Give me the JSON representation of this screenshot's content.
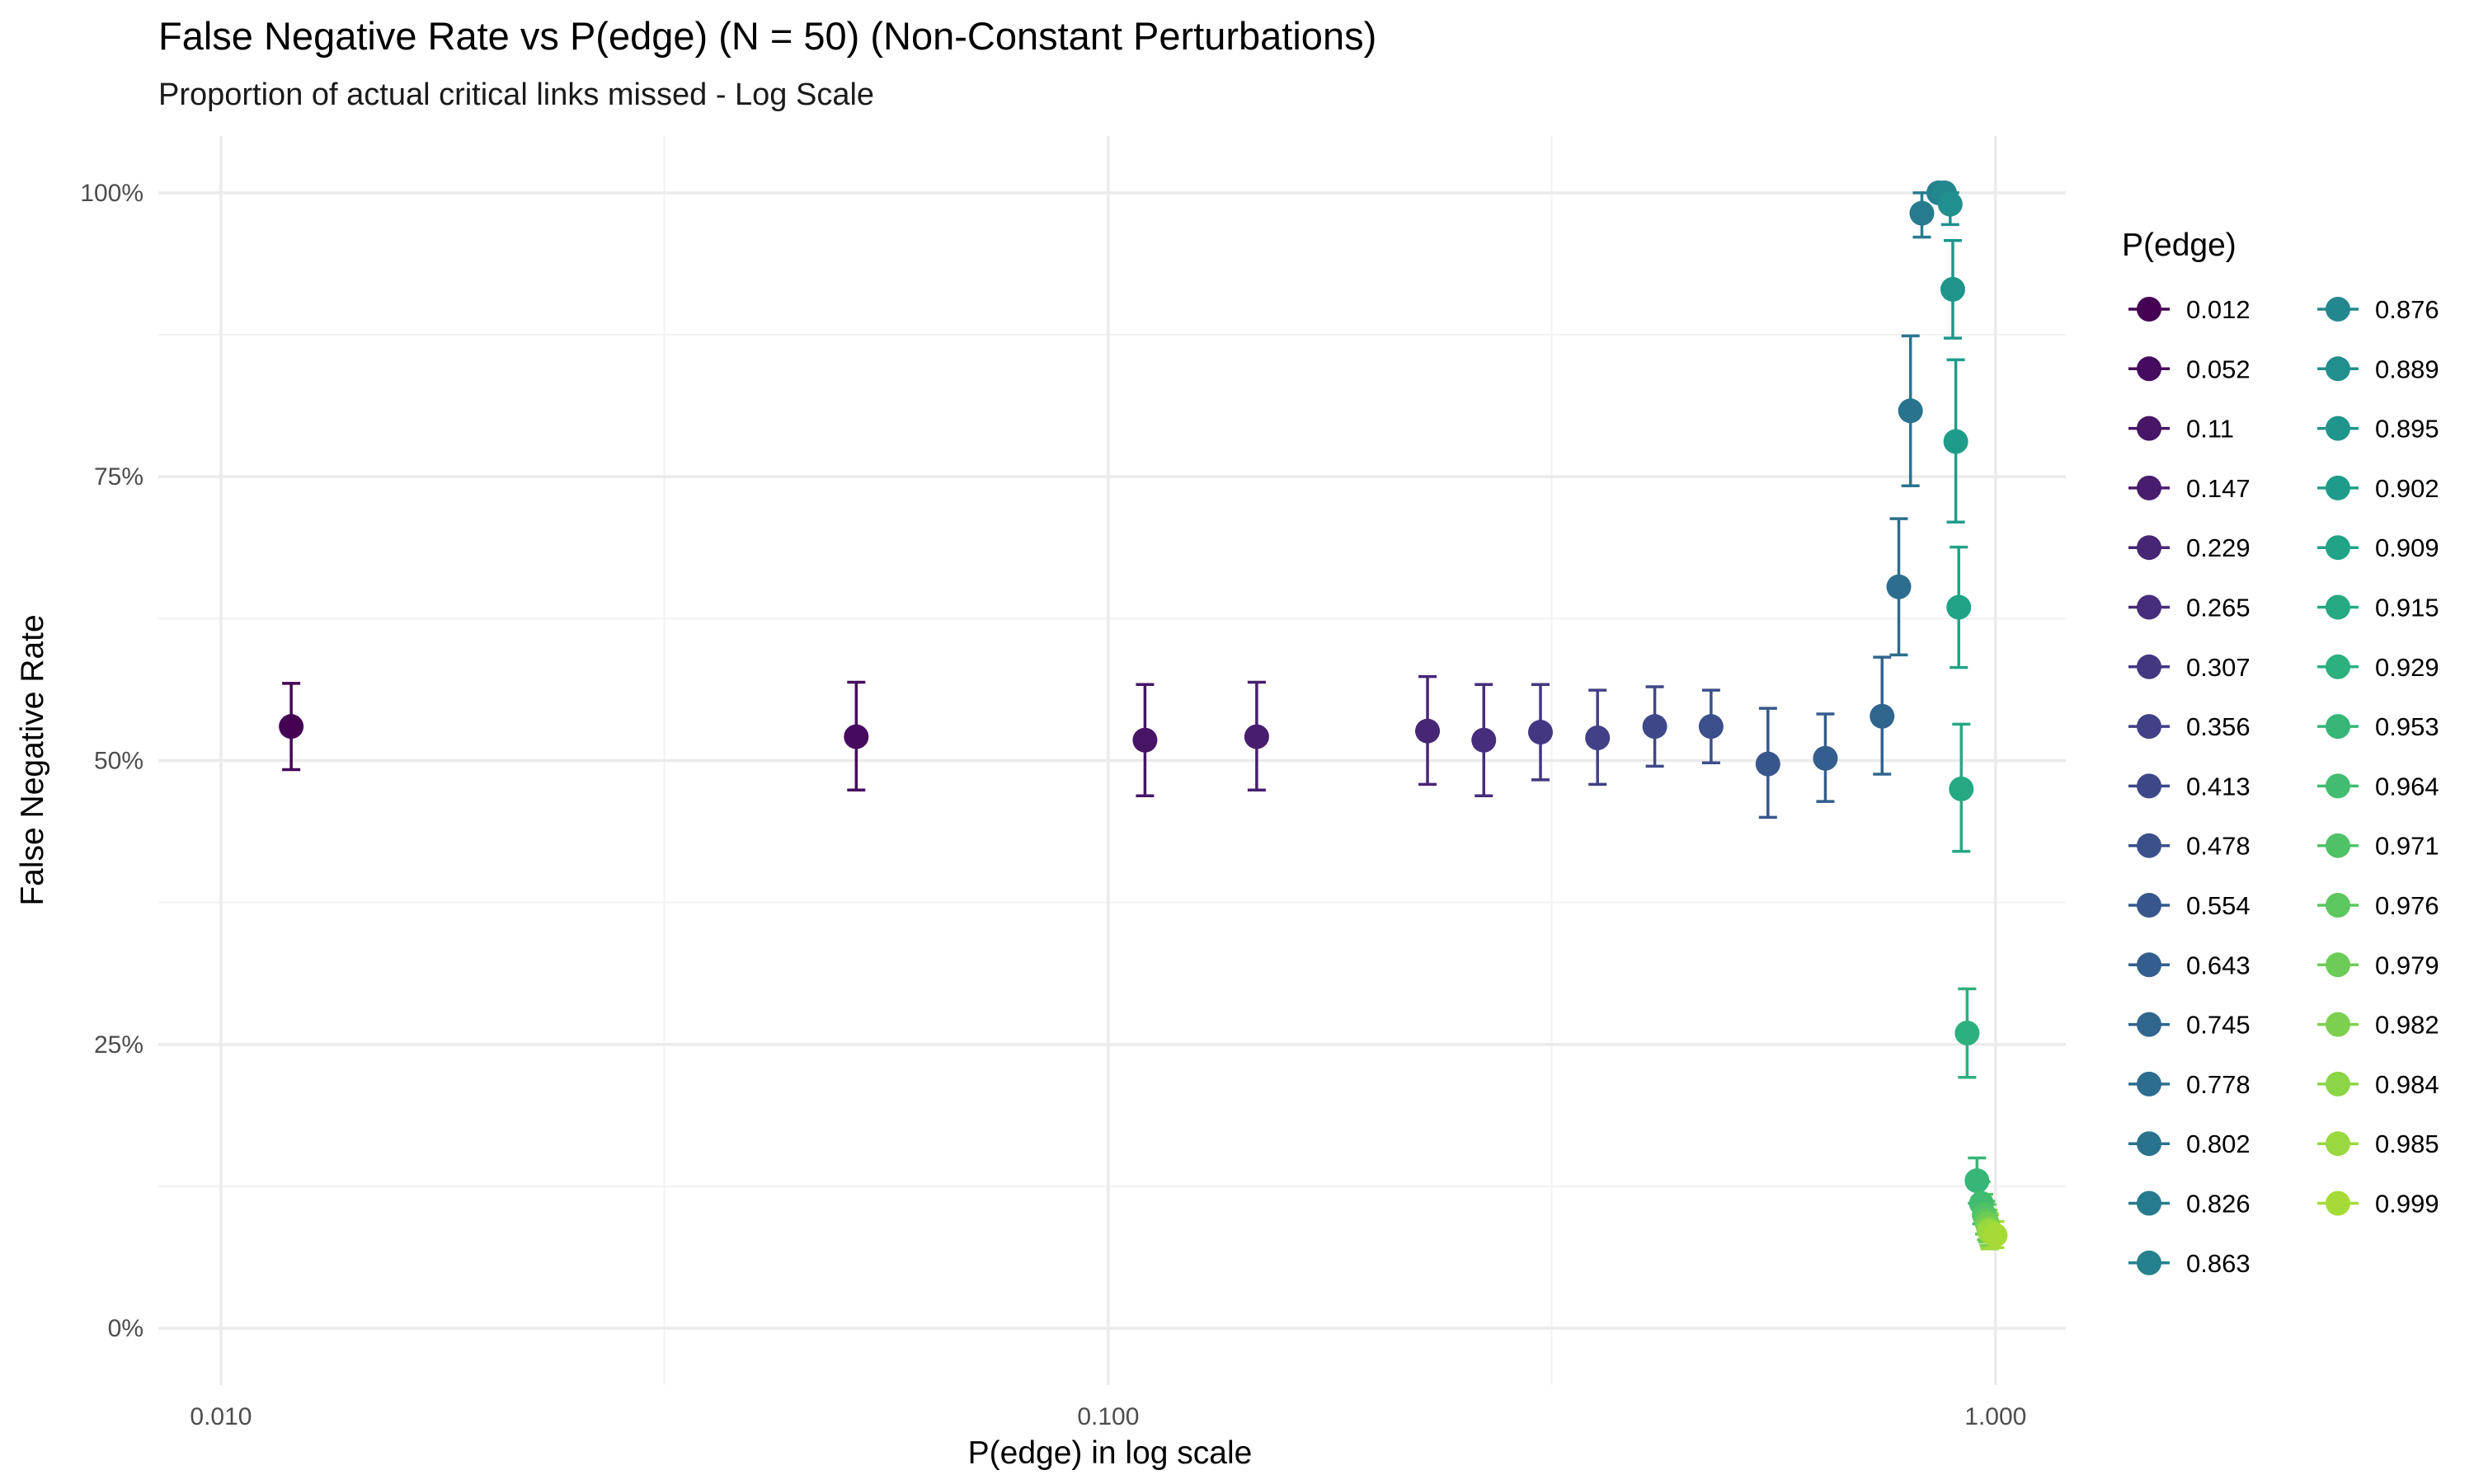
{
  "chart_data": {
    "type": "scatter",
    "title": "False Negative Rate vs P(edge) (N = 50) (Non-Constant Perturbations)",
    "subtitle": "Proportion of actual critical links missed - Log Scale",
    "xlabel": "P(edge) in log scale",
    "ylabel": "False Negative Rate",
    "x_scale": "log10",
    "xlim": [
      0.0085,
      1.2
    ],
    "ylim": [
      -0.05,
      1.05
    ],
    "x_ticks": [
      {
        "value": 0.01,
        "label": "0.010"
      },
      {
        "value": 0.1,
        "label": "0.100"
      },
      {
        "value": 1.0,
        "label": "1.000"
      }
    ],
    "x_minor_ticks": [
      0.0316,
      0.316
    ],
    "y_ticks": [
      {
        "value": 0.0,
        "label": "0%"
      },
      {
        "value": 0.25,
        "label": "25%"
      },
      {
        "value": 0.5,
        "label": "50%"
      },
      {
        "value": 0.75,
        "label": "75%"
      },
      {
        "value": 1.0,
        "label": "100%"
      }
    ],
    "y_minor_ticks": [
      0.125,
      0.375,
      0.625,
      0.875
    ],
    "grid": true,
    "legend": {
      "title": "P(edge)",
      "position": "right",
      "columns": 2
    },
    "series": [
      {
        "name": "0.012",
        "color": "#440154",
        "x": 0.012,
        "y": 0.53,
        "ymin": 0.492,
        "ymax": 0.568
      },
      {
        "name": "0.052",
        "color": "#460B5E",
        "x": 0.052,
        "y": 0.521,
        "ymin": 0.474,
        "ymax": 0.569
      },
      {
        "name": "0.11",
        "color": "#471466",
        "x": 0.11,
        "y": 0.518,
        "ymin": 0.469,
        "ymax": 0.567
      },
      {
        "name": "0.147",
        "color": "#481D6F",
        "x": 0.147,
        "y": 0.521,
        "ymin": 0.474,
        "ymax": 0.569
      },
      {
        "name": "0.229",
        "color": "#472676",
        "x": 0.229,
        "y": 0.526,
        "ymin": 0.479,
        "ymax": 0.574
      },
      {
        "name": "0.265",
        "color": "#462E7C",
        "x": 0.265,
        "y": 0.518,
        "ymin": 0.469,
        "ymax": 0.567
      },
      {
        "name": "0.307",
        "color": "#443782",
        "x": 0.307,
        "y": 0.525,
        "ymin": 0.483,
        "ymax": 0.567
      },
      {
        "name": "0.356",
        "color": "#424086",
        "x": 0.356,
        "y": 0.52,
        "ymin": 0.479,
        "ymax": 0.562
      },
      {
        "name": "0.413",
        "color": "#3E4889",
        "x": 0.413,
        "y": 0.53,
        "ymin": 0.495,
        "ymax": 0.565
      },
      {
        "name": "0.478",
        "color": "#3B4F8B",
        "x": 0.478,
        "y": 0.53,
        "ymin": 0.498,
        "ymax": 0.562
      },
      {
        "name": "0.554",
        "color": "#37578C",
        "x": 0.554,
        "y": 0.497,
        "ymin": 0.45,
        "ymax": 0.546
      },
      {
        "name": "0.643",
        "color": "#335E8D",
        "x": 0.643,
        "y": 0.502,
        "ymin": 0.464,
        "ymax": 0.541
      },
      {
        "name": "0.745",
        "color": "#30658E",
        "x": 0.745,
        "y": 0.539,
        "ymin": 0.488,
        "ymax": 0.591
      },
      {
        "name": "0.778",
        "color": "#2D6D8E",
        "x": 0.778,
        "y": 0.653,
        "ymin": 0.593,
        "ymax": 0.713
      },
      {
        "name": "0.802",
        "color": "#2A738E",
        "x": 0.802,
        "y": 0.808,
        "ymin": 0.742,
        "ymax": 0.874
      },
      {
        "name": "0.826",
        "color": "#277B8E",
        "x": 0.826,
        "y": 0.982,
        "ymin": 0.961,
        "ymax": 1.0
      },
      {
        "name": "0.863",
        "color": "#25818E",
        "x": 0.863,
        "y": 1.0,
        "ymin": 1.0,
        "ymax": 1.0
      },
      {
        "name": "0.876",
        "color": "#23888E",
        "x": 0.876,
        "y": 1.0,
        "ymin": 1.0,
        "ymax": 1.0
      },
      {
        "name": "0.889",
        "color": "#218F8D",
        "x": 0.889,
        "y": 0.99,
        "ymin": 0.972,
        "ymax": 1.0
      },
      {
        "name": "0.895",
        "color": "#1F958B",
        "x": 0.895,
        "y": 0.915,
        "ymin": 0.872,
        "ymax": 0.958
      },
      {
        "name": "0.902",
        "color": "#1F9C89",
        "x": 0.902,
        "y": 0.781,
        "ymin": 0.71,
        "ymax": 0.853
      },
      {
        "name": "0.909",
        "color": "#21A386",
        "x": 0.909,
        "y": 0.635,
        "ymin": 0.582,
        "ymax": 0.688
      },
      {
        "name": "0.915",
        "color": "#25A982",
        "x": 0.915,
        "y": 0.475,
        "ymin": 0.42,
        "ymax": 0.532
      },
      {
        "name": "0.929",
        "color": "#2CB07E",
        "x": 0.929,
        "y": 0.26,
        "ymin": 0.221,
        "ymax": 0.299
      },
      {
        "name": "0.953",
        "color": "#36B677",
        "x": 0.953,
        "y": 0.13,
        "ymin": 0.11,
        "ymax": 0.15
      },
      {
        "name": "0.964",
        "color": "#42BC70",
        "x": 0.964,
        "y": 0.11,
        "ymin": 0.092,
        "ymax": 0.129
      },
      {
        "name": "0.971",
        "color": "#4FC267",
        "x": 0.971,
        "y": 0.1,
        "ymin": 0.083,
        "ymax": 0.118
      },
      {
        "name": "0.976",
        "color": "#5CC75F",
        "x": 0.976,
        "y": 0.095,
        "ymin": 0.078,
        "ymax": 0.112
      },
      {
        "name": "0.979",
        "color": "#6CCC57",
        "x": 0.979,
        "y": 0.092,
        "ymin": 0.076,
        "ymax": 0.109
      },
      {
        "name": "0.982",
        "color": "#7DD04F",
        "x": 0.982,
        "y": 0.088,
        "ymin": 0.073,
        "ymax": 0.104
      },
      {
        "name": "0.984",
        "color": "#8BD547",
        "x": 0.984,
        "y": 0.086,
        "ymin": 0.071,
        "ymax": 0.101
      },
      {
        "name": "0.985",
        "color": "#9AD83F",
        "x": 0.985,
        "y": 0.085,
        "ymin": 0.07,
        "ymax": 0.1
      },
      {
        "name": "0.999",
        "color": "#A5DB36",
        "x": 0.999,
        "y": 0.082,
        "ymin": 0.071,
        "ymax": 0.094
      }
    ]
  }
}
